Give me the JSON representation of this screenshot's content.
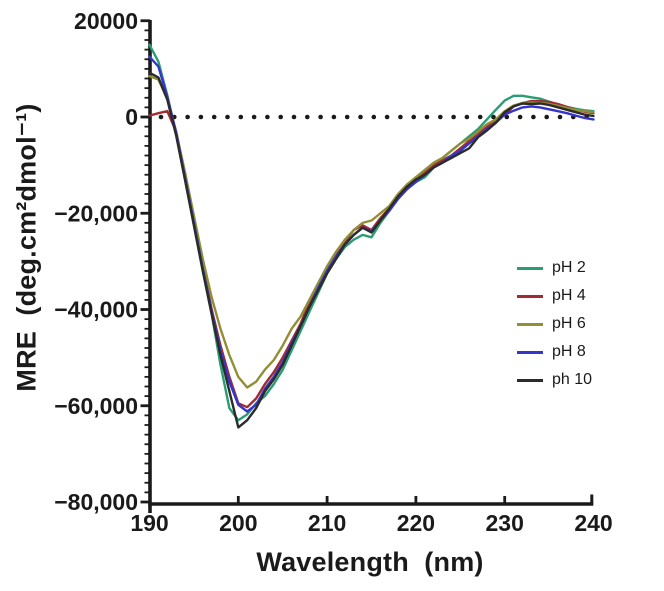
{
  "figure": {
    "background": "#ffffff",
    "axis_color": "#1a1a1a"
  },
  "chart_data": {
    "type": "line",
    "title": "",
    "xlabel": "Wavelength  (nm)",
    "ylabel": "MRE  (deg.cm²dmol⁻¹)",
    "xlim": [
      190,
      240
    ],
    "ylim": [
      -80000,
      20000
    ],
    "grid": false,
    "legend_position": "right-middle",
    "x_ticks": [
      190,
      200,
      210,
      220,
      230,
      240
    ],
    "y_ticks": [
      {
        "value": 20000,
        "label": "20000"
      },
      {
        "value": 0,
        "label": "0"
      },
      {
        "value": -20000,
        "label": "−20,000"
      },
      {
        "value": -40000,
        "label": "−40,000"
      },
      {
        "value": -60000,
        "label": "−60,000"
      },
      {
        "value": -80000,
        "label": "−80,000"
      }
    ],
    "y_minor_tick_step": 2000,
    "zero_line": {
      "style": "dotted",
      "value": 0,
      "color": "#1a1a1a"
    },
    "x": [
      190,
      191,
      192,
      193,
      194,
      195,
      196,
      197,
      198,
      199,
      200,
      201,
      202,
      203,
      204,
      205,
      206,
      207,
      208,
      209,
      210,
      211,
      212,
      213,
      214,
      215,
      216,
      217,
      218,
      219,
      220,
      221,
      222,
      223,
      224,
      225,
      226,
      227,
      228,
      229,
      230,
      231,
      232,
      233,
      234,
      235,
      236,
      237,
      238,
      239,
      240
    ],
    "series": [
      {
        "name": "pH 2",
        "color": "#2A9D72",
        "values": [
          15000,
          11500,
          4500,
          -3500,
          -13000,
          -22500,
          -32000,
          -41000,
          -51500,
          -60500,
          -63000,
          -61800,
          -59500,
          -58000,
          -55500,
          -52500,
          -48500,
          -44500,
          -40500,
          -36500,
          -32500,
          -29500,
          -27000,
          -25500,
          -24500,
          -25000,
          -22000,
          -19500,
          -17000,
          -15000,
          -13500,
          -12500,
          -10500,
          -8500,
          -7000,
          -5500,
          -4000,
          -2500,
          -500,
          1500,
          3400,
          4400,
          4400,
          4100,
          3800,
          3200,
          2600,
          2100,
          1700,
          1400,
          1200
        ]
      },
      {
        "name": "pH 4",
        "color": "#A02C33",
        "values": [
          300,
          800,
          1200,
          -3000,
          -12000,
          -21500,
          -31000,
          -40000,
          -47500,
          -54000,
          -59500,
          -60300,
          -58500,
          -55500,
          -53000,
          -50000,
          -46500,
          -43000,
          -38500,
          -35000,
          -31500,
          -28500,
          -26000,
          -23500,
          -22500,
          -23500,
          -21000,
          -19000,
          -16500,
          -14500,
          -13000,
          -11500,
          -10000,
          -9000,
          -8000,
          -6500,
          -5000,
          -3500,
          -2000,
          -800,
          500,
          2200,
          2900,
          3300,
          3300,
          3100,
          2700,
          2100,
          1500,
          1100,
          800
        ]
      },
      {
        "name": "pH 6",
        "color": "#918F35",
        "values": [
          8500,
          7800,
          3800,
          -3000,
          -11500,
          -20500,
          -29500,
          -37500,
          -44000,
          -49500,
          -54000,
          -56200,
          -55000,
          -52500,
          -50500,
          -47500,
          -44000,
          -41500,
          -38000,
          -34500,
          -31000,
          -28000,
          -25500,
          -23500,
          -22000,
          -21500,
          -20000,
          -18500,
          -16000,
          -14000,
          -12500,
          -11000,
          -9500,
          -8500,
          -7000,
          -5500,
          -4500,
          -3000,
          -1500,
          -500,
          1200,
          2400,
          2900,
          3000,
          2900,
          2700,
          2300,
          1900,
          1500,
          1200,
          1000
        ]
      },
      {
        "name": "pH 8",
        "color": "#3535CE",
        "values": [
          12500,
          10500,
          4200,
          -3200,
          -12500,
          -22000,
          -31500,
          -40500,
          -48500,
          -55000,
          -59800,
          -61200,
          -59800,
          -56500,
          -54000,
          -51000,
          -47000,
          -43500,
          -39500,
          -35500,
          -32000,
          -29000,
          -26500,
          -24500,
          -23000,
          -23800,
          -21500,
          -19500,
          -17000,
          -15000,
          -13500,
          -12000,
          -10500,
          -9500,
          -8000,
          -7000,
          -5500,
          -4000,
          -2500,
          -1200,
          500,
          1300,
          2000,
          2200,
          2000,
          1600,
          1200,
          800,
          300,
          -200,
          -500
        ]
      },
      {
        "name": "ph 10",
        "color": "#2B2B2B",
        "values": [
          9200,
          8200,
          3600,
          -3800,
          -13000,
          -22500,
          -32000,
          -41000,
          -49500,
          -57000,
          -64500,
          -63000,
          -60500,
          -57000,
          -54500,
          -51500,
          -47500,
          -43500,
          -39500,
          -36000,
          -32500,
          -29500,
          -26500,
          -24500,
          -23000,
          -24000,
          -21500,
          -19000,
          -16500,
          -14500,
          -13000,
          -12000,
          -10500,
          -9500,
          -8500,
          -7500,
          -6500,
          -4200,
          -2800,
          -1200,
          1000,
          2200,
          2800,
          2700,
          2800,
          2500,
          2000,
          1500,
          1000,
          500,
          200
        ]
      }
    ]
  }
}
